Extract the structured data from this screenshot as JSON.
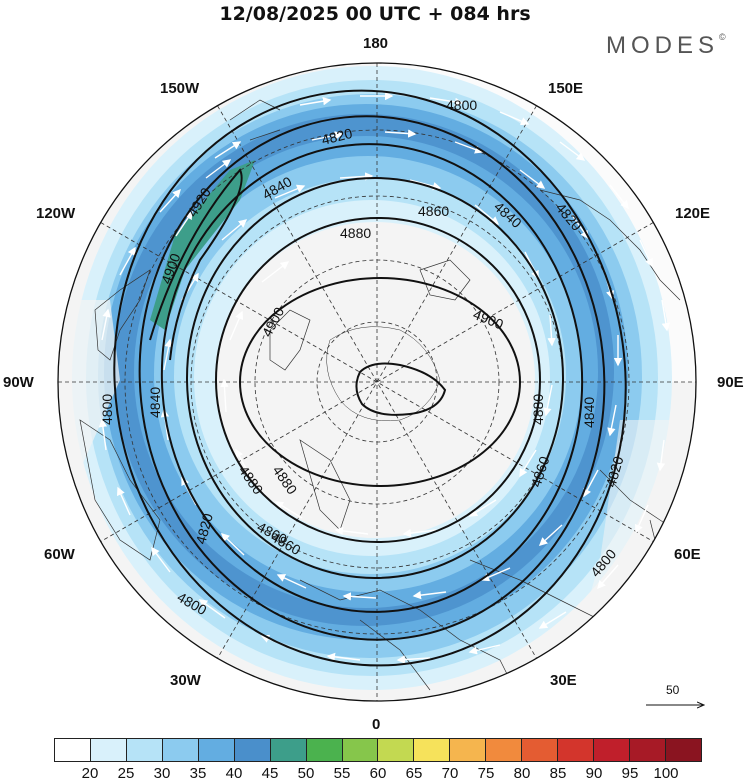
{
  "title": "12/08/2025  00 UTC  + 084 hrs",
  "brand": "MODES",
  "brand_mark": "©",
  "longitude_labels": {
    "n180": "180",
    "w150": "150W",
    "e150": "150E",
    "w120": "120W",
    "e120": "120E",
    "w90": "90W",
    "e90": "90E",
    "w60": "60W",
    "e60": "60E",
    "w30": "30W",
    "e30": "30E",
    "s0": "0"
  },
  "contour_labels": [
    "4800",
    "4820",
    "4840",
    "4860",
    "4880",
    "4900",
    "4920",
    "4800",
    "4820",
    "4840",
    "4860",
    "4880",
    "4900",
    "4800",
    "4820",
    "4840",
    "4860",
    "4880",
    "4900",
    "4840",
    "4800",
    "4820",
    "4860",
    "4880"
  ],
  "colorbar": {
    "colors": [
      "#ffffff",
      "#d9f1fb",
      "#b6e3f7",
      "#8ccbef",
      "#63ade1",
      "#4a8fcb",
      "#3d9e8a",
      "#4bb24e",
      "#86c64b",
      "#c3d951",
      "#f6e25b",
      "#f5b54e",
      "#f18a3d",
      "#e45c32",
      "#d3352c",
      "#c01f2b",
      "#a71a26",
      "#8a1420"
    ],
    "ticks": [
      "20",
      "25",
      "30",
      "35",
      "40",
      "45",
      "50",
      "55",
      "60",
      "65",
      "70",
      "75",
      "80",
      "85",
      "90",
      "95",
      "100"
    ]
  },
  "reference_vector": "50",
  "jet_core_color": "#3d9e8a"
}
